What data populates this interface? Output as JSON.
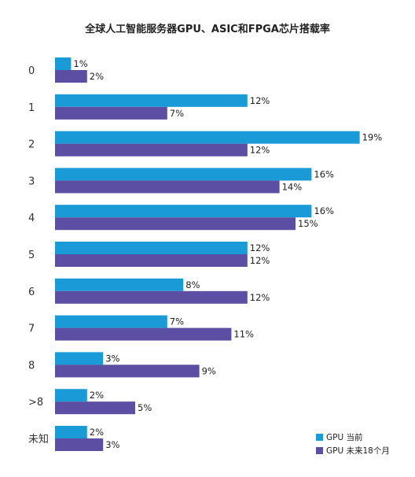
{
  "chart_data": {
    "type": "bar",
    "orientation": "horizontal",
    "title": "全球人工智能服务器GPU、ASIC和FPGA芯片搭载率",
    "categories": [
      "0",
      "1",
      "2",
      "3",
      "4",
      "5",
      "6",
      "7",
      "8",
      ">8",
      "未知"
    ],
    "series": [
      {
        "name": "GPU 当前",
        "color": "#1a9ad6",
        "values": [
          1,
          12,
          19,
          16,
          16,
          12,
          8,
          7,
          3,
          2,
          2
        ],
        "labels": [
          "1%",
          "12%",
          "19%",
          "16%",
          "16%",
          "12%",
          "8%",
          "7%",
          "3%",
          "2%",
          "2%"
        ]
      },
      {
        "name": "GPU 未来18个月",
        "color": "#5b4ea3",
        "values": [
          2,
          7,
          12,
          14,
          15,
          12,
          12,
          11,
          9,
          5,
          3
        ],
        "labels": [
          "2%",
          "7%",
          "12%",
          "14%",
          "15%",
          "12%",
          "12%",
          "11%",
          "9%",
          "5%",
          "3%"
        ]
      }
    ],
    "unit": "%",
    "xlim": [
      0,
      20
    ],
    "grid": false,
    "legend_position": "bottom-right"
  }
}
